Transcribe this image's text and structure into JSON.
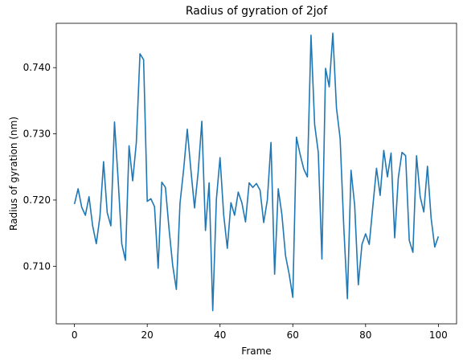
{
  "chart_data": {
    "type": "line",
    "title": "Radius of gyration of 2jof",
    "xlabel": "Frame",
    "ylabel": "Radius of gyration (nm)",
    "xlim": [
      -5,
      105
    ],
    "ylim": [
      0.7013,
      0.7467
    ],
    "xticks": [
      0,
      20,
      40,
      60,
      80,
      100
    ],
    "yticks": [
      0.71,
      0.72,
      0.73,
      0.74
    ],
    "ytick_labels": [
      "0.710",
      "0.720",
      "0.730",
      "0.740"
    ],
    "grid": false,
    "line_color": "#1f77b4",
    "series": [
      {
        "x": [
          0,
          1,
          2,
          3,
          4,
          5,
          6,
          7,
          8,
          9,
          10,
          11,
          12,
          13,
          14,
          15,
          16,
          17,
          18,
          19,
          20,
          21,
          22,
          23,
          24,
          25,
          26,
          27,
          28,
          29,
          30,
          31,
          32,
          33,
          34,
          35,
          36,
          37,
          38,
          39,
          40,
          41,
          42,
          43,
          44,
          45,
          46,
          47,
          48,
          49,
          50,
          51,
          52,
          53,
          54,
          55,
          56,
          57,
          58,
          59,
          60,
          61,
          62,
          63,
          64,
          65,
          66,
          67,
          68,
          69,
          70,
          71,
          72,
          73,
          74,
          75,
          76,
          77,
          78,
          79,
          80,
          81,
          82,
          83,
          84,
          85,
          86,
          87,
          88,
          89,
          90,
          91,
          92,
          93,
          94,
          95,
          96,
          97,
          98,
          99,
          100
        ],
        "values": [
          0.7194,
          0.7217,
          0.7189,
          0.7177,
          0.7205,
          0.7161,
          0.7134,
          0.7175,
          0.7258,
          0.7181,
          0.7161,
          0.7318,
          0.7231,
          0.7134,
          0.7109,
          0.7282,
          0.7229,
          0.7287,
          0.7421,
          0.7412,
          0.7198,
          0.7202,
          0.719,
          0.7097,
          0.7227,
          0.7219,
          0.7156,
          0.7101,
          0.7065,
          0.7195,
          0.7246,
          0.7307,
          0.7245,
          0.7188,
          0.7243,
          0.7319,
          0.7154,
          0.7226,
          0.7033,
          0.7201,
          0.7264,
          0.7178,
          0.7127,
          0.7196,
          0.7177,
          0.7212,
          0.7196,
          0.7167,
          0.7226,
          0.7219,
          0.7225,
          0.7215,
          0.7166,
          0.72,
          0.7287,
          0.7088,
          0.7217,
          0.7178,
          0.7116,
          0.7088,
          0.7053,
          0.7295,
          0.7269,
          0.7247,
          0.7235,
          0.7449,
          0.7314,
          0.7272,
          0.7111,
          0.7399,
          0.7371,
          0.7452,
          0.7339,
          0.7293,
          0.716,
          0.7051,
          0.7245,
          0.7192,
          0.7072,
          0.7133,
          0.7149,
          0.7133,
          0.7191,
          0.7248,
          0.7207,
          0.7275,
          0.7235,
          0.7271,
          0.7143,
          0.7234,
          0.7272,
          0.7267,
          0.7139,
          0.7121,
          0.7267,
          0.7205,
          0.7182,
          0.7251,
          0.7173,
          0.7129,
          0.7145
        ]
      }
    ]
  }
}
